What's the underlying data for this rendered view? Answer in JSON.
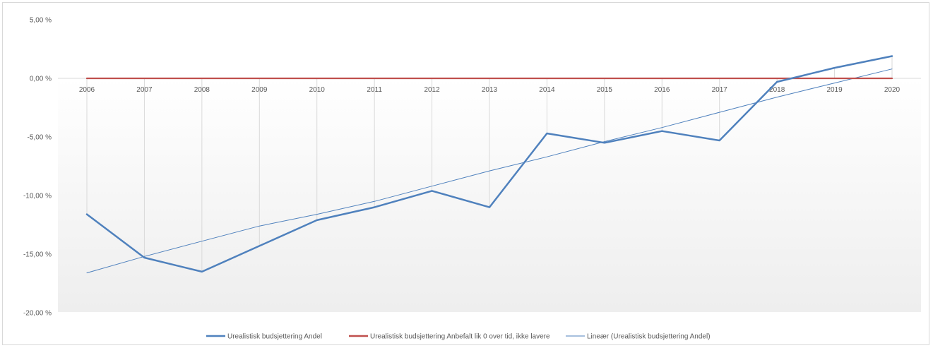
{
  "chart_data": {
    "type": "line",
    "title": "",
    "xlabel": "",
    "ylabel": "",
    "categories": [
      "2006",
      "2007",
      "2008",
      "2009",
      "2010",
      "2011",
      "2012",
      "2013",
      "2014",
      "2015",
      "2016",
      "2017",
      "2018",
      "2019",
      "2020"
    ],
    "ylim": [
      -20,
      5
    ],
    "yticks": [
      5,
      0,
      -5,
      -10,
      -15,
      -20
    ],
    "ytick_labels": [
      "5,00 %",
      "0,00 %",
      "-5,00 %",
      "-10,00 %",
      "-15,00 %",
      "-20,00 %"
    ],
    "grid": "vertical drop lines at categories",
    "legend_position": "bottom",
    "series": [
      {
        "name": "Urealistisk budsjettering Andel",
        "color": "#4f81bd",
        "values": [
          -11.6,
          -15.3,
          -16.5,
          -14.3,
          -12.1,
          -11.0,
          -9.6,
          -11.0,
          -4.7,
          -5.5,
          -4.5,
          -5.3,
          -0.3,
          0.9,
          1.9
        ]
      },
      {
        "name": "Urealistisk budsjettering Anbefalt lik 0 over tid, ikke lavere",
        "color": "#c0504d",
        "values": [
          0,
          0,
          0,
          0,
          0,
          0,
          0,
          0,
          0,
          0,
          0,
          0,
          0,
          0,
          0
        ]
      },
      {
        "name": "Lineær (Urealistisk budsjettering Andel)",
        "color": "#4f81bd",
        "trend": true,
        "values": [
          -16.6,
          -15.2,
          -13.9,
          -12.6,
          -11.6,
          -10.5,
          -9.2,
          -7.9,
          -6.7,
          -5.4,
          -4.2,
          -2.9,
          -1.6,
          -0.4,
          0.8
        ]
      }
    ]
  }
}
